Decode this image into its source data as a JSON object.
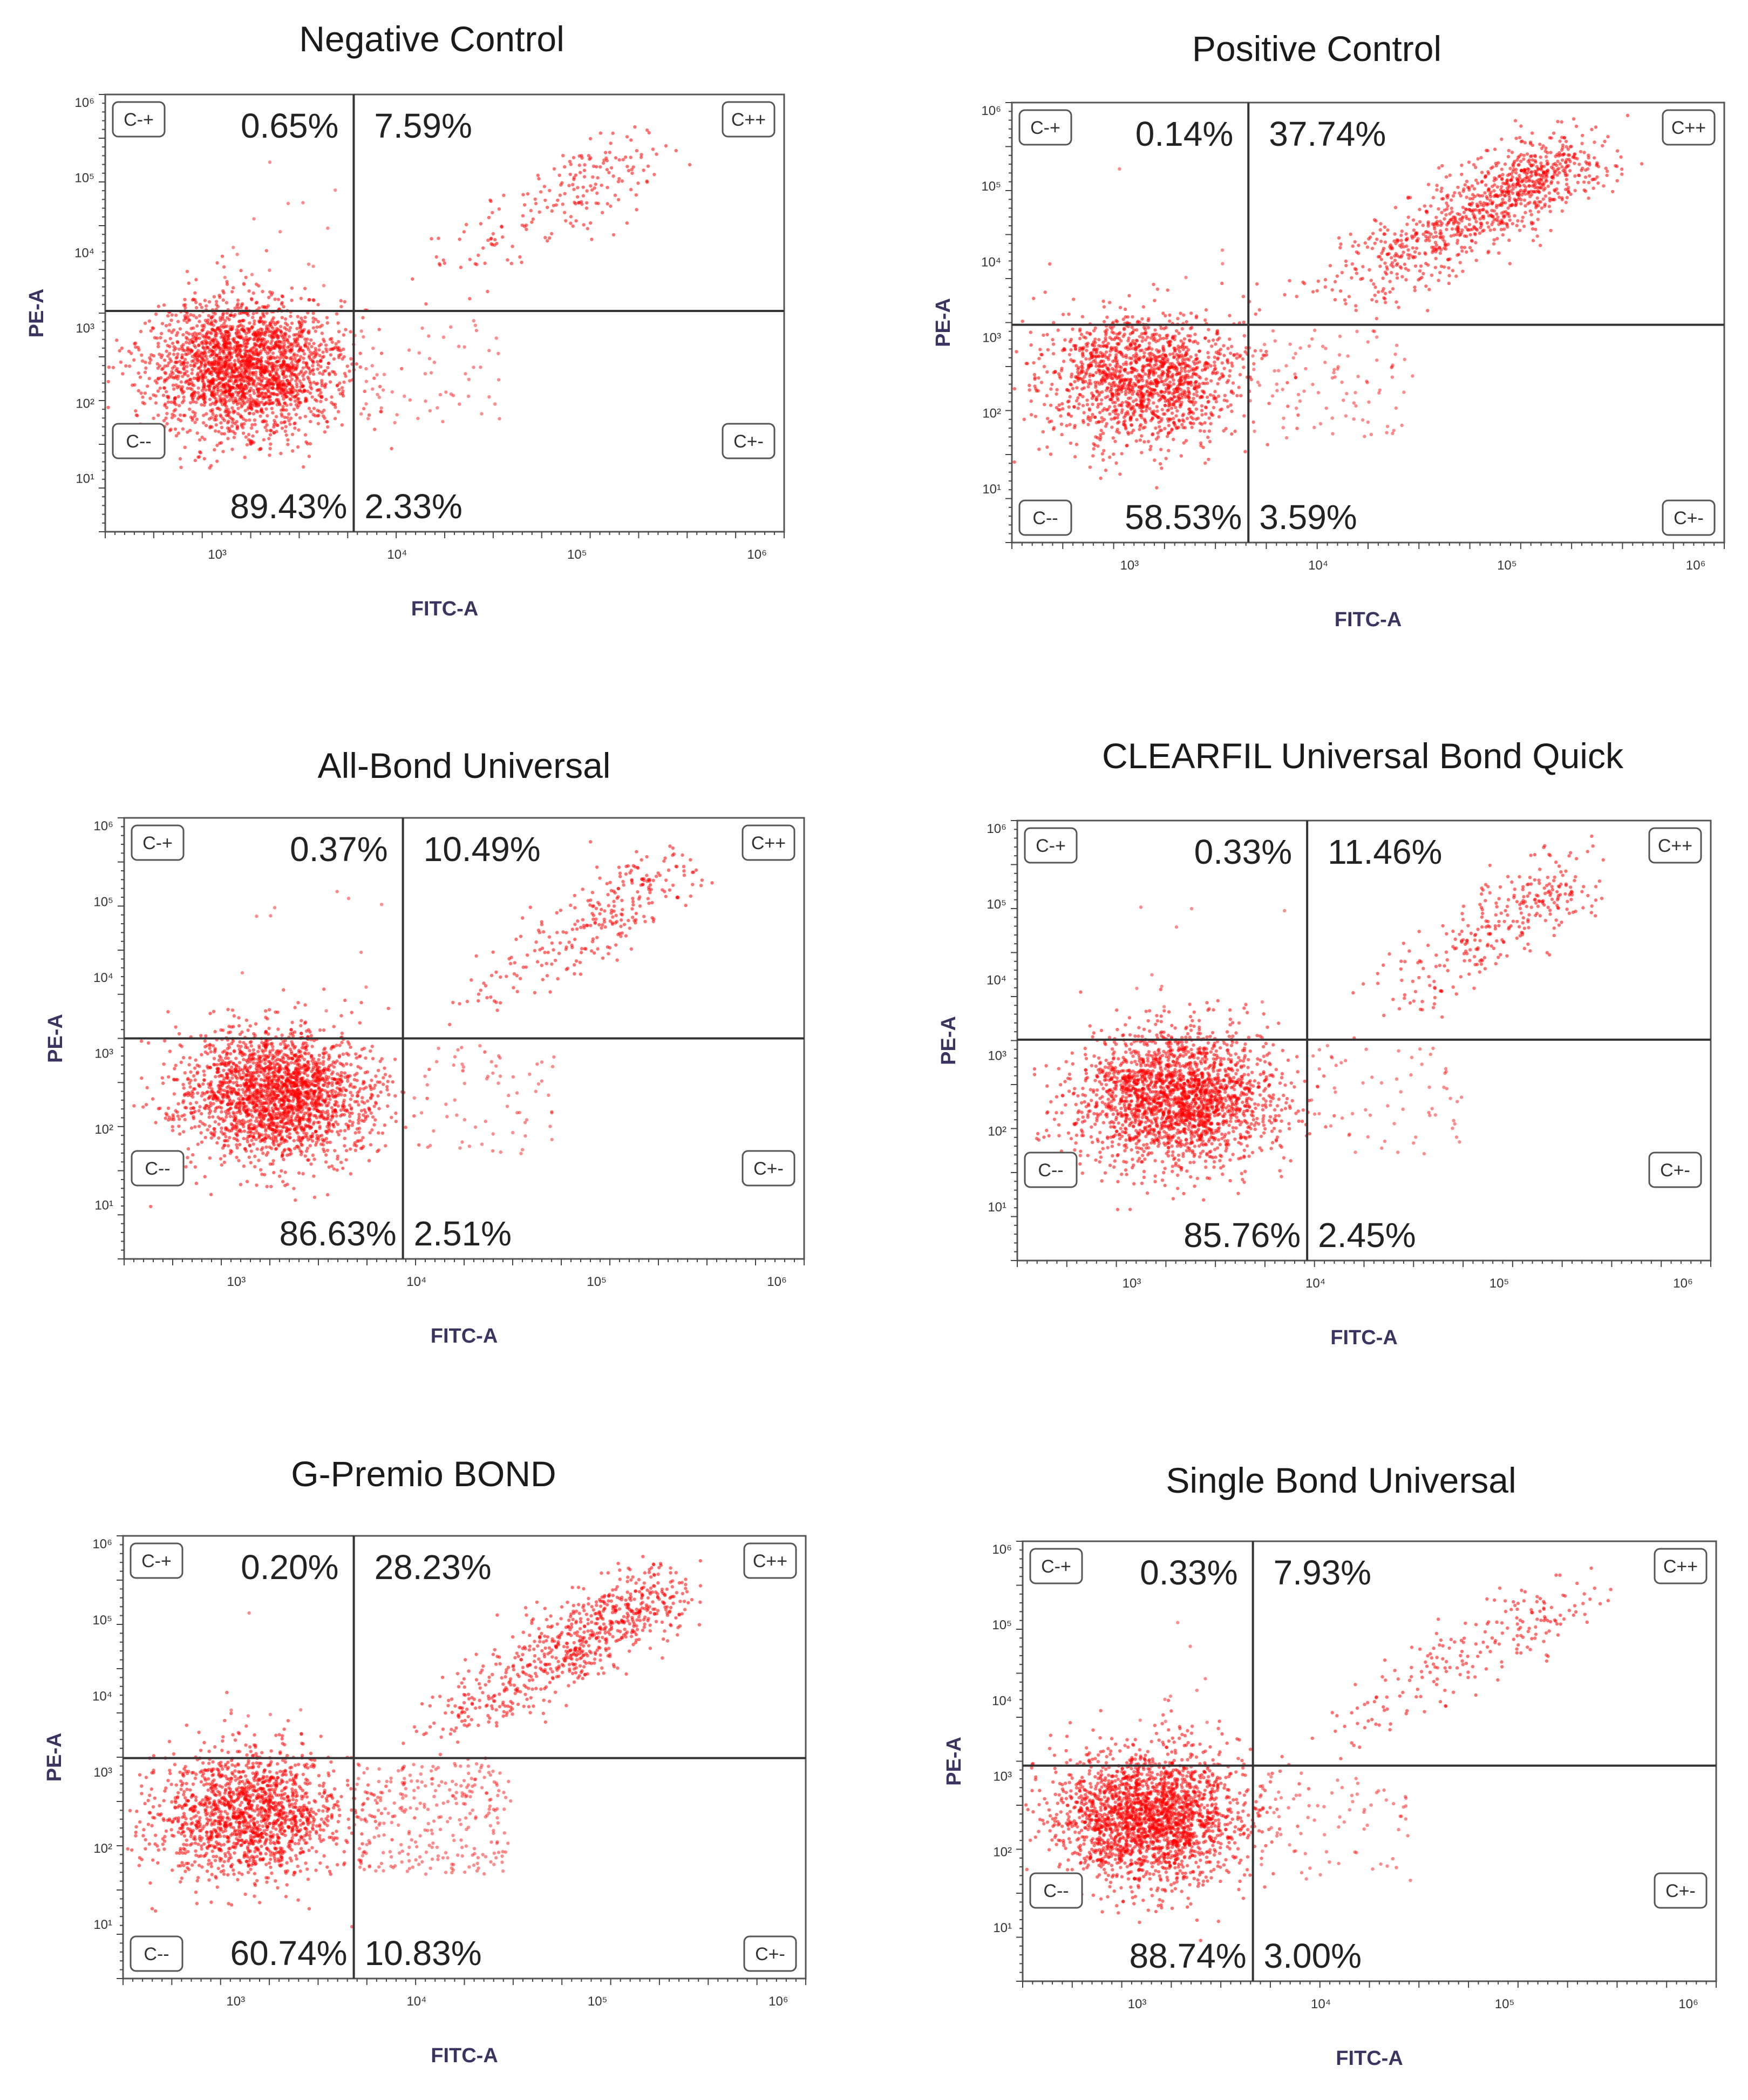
{
  "chart_data": [
    {
      "type": "scatter",
      "title": "Negative Control",
      "xlabel": "FITC-A",
      "ylabel": "PE-A",
      "x_scale": "log",
      "y_scale": "log",
      "x_ticks": [
        "10³",
        "10⁴",
        "10⁵",
        "10⁶"
      ],
      "y_ticks": [
        "10⁶",
        "10⁵",
        "10⁴",
        "10³",
        "10²",
        "10¹"
      ],
      "quadrant_labels": {
        "top_left": "C-+",
        "top_right": "C++",
        "bottom_left": "C--",
        "bottom_right": "C+-"
      },
      "quadrants": {
        "top_left": "0.65%",
        "top_right": "7.59%",
        "bottom_left": "89.43%",
        "bottom_right": "2.33%"
      },
      "point_color": "#ff0000"
    },
    {
      "type": "scatter",
      "title": "Positive Control",
      "xlabel": "FITC-A",
      "ylabel": "PE-A",
      "x_scale": "log",
      "y_scale": "log",
      "x_ticks": [
        "10³",
        "10⁴",
        "10⁵",
        "10⁶"
      ],
      "y_ticks": [
        "10⁶",
        "10⁵",
        "10⁴",
        "10³",
        "10²",
        "10¹"
      ],
      "quadrant_labels": {
        "top_left": "C-+",
        "top_right": "C++",
        "bottom_left": "C--",
        "bottom_right": "C+-"
      },
      "quadrants": {
        "top_left": "0.14%",
        "top_right": "37.74%",
        "bottom_left": "58.53%",
        "bottom_right": "3.59%"
      },
      "point_color": "#ff0000"
    },
    {
      "type": "scatter",
      "title": "All-Bond Universal",
      "xlabel": "FITC-A",
      "ylabel": "PE-A",
      "x_scale": "log",
      "y_scale": "log",
      "x_ticks": [
        "10³",
        "10⁴",
        "10⁵",
        "10⁶"
      ],
      "y_ticks": [
        "10⁶",
        "10⁵",
        "10⁴",
        "10³",
        "10²",
        "10¹"
      ],
      "quadrant_labels": {
        "top_left": "C-+",
        "top_right": "C++",
        "bottom_left": "C--",
        "bottom_right": "C+-"
      },
      "quadrants": {
        "top_left": "0.37%",
        "top_right": "10.49%",
        "bottom_left": "86.63%",
        "bottom_right": "2.51%"
      },
      "point_color": "#ff0000"
    },
    {
      "type": "scatter",
      "title": "CLEARFIL  Universal Bond Quick",
      "xlabel": "FITC-A",
      "ylabel": "PE-A",
      "x_scale": "log",
      "y_scale": "log",
      "x_ticks": [
        "10³",
        "10⁴",
        "10⁵",
        "10⁶"
      ],
      "y_ticks": [
        "10⁶",
        "10⁵",
        "10⁴",
        "10³",
        "10²",
        "10¹"
      ],
      "quadrant_labels": {
        "top_left": "C-+",
        "top_right": "C++",
        "bottom_left": "C--",
        "bottom_right": "C+-"
      },
      "quadrants": {
        "top_left": "0.33%",
        "top_right": "11.46%",
        "bottom_left": "85.76%",
        "bottom_right": "2.45%"
      },
      "point_color": "#ff0000"
    },
    {
      "type": "scatter",
      "title": "G-Premio BOND",
      "xlabel": "FITC-A",
      "ylabel": "PE-A",
      "x_scale": "log",
      "y_scale": "log",
      "x_ticks": [
        "10³",
        "10⁴",
        "10⁵",
        "10⁶"
      ],
      "y_ticks": [
        "10⁶",
        "10⁵",
        "10⁴",
        "10³",
        "10²",
        "10¹"
      ],
      "quadrant_labels": {
        "top_left": "C-+",
        "top_right": "C++",
        "bottom_left": "C--",
        "bottom_right": "C+-"
      },
      "quadrants": {
        "top_left": "0.20%",
        "top_right": "28.23%",
        "bottom_left": "60.74%",
        "bottom_right": "10.83%"
      },
      "point_color": "#ff0000"
    },
    {
      "type": "scatter",
      "title": "Single Bond Universal",
      "xlabel": "FITC-A",
      "ylabel": "PE-A",
      "x_scale": "log",
      "y_scale": "log",
      "x_ticks": [
        "10³",
        "10⁴",
        "10⁵",
        "10⁶"
      ],
      "y_ticks": [
        "10⁶",
        "10⁵",
        "10⁴",
        "10³",
        "10²",
        "10¹"
      ],
      "quadrant_labels": {
        "top_left": "C-+",
        "top_right": "C++",
        "bottom_left": "C--",
        "bottom_right": "C+-"
      },
      "quadrants": {
        "top_left": "0.33%",
        "top_right": "7.93%",
        "bottom_left": "88.74%",
        "bottom_right": "3.00%"
      },
      "point_color": "#ff0000"
    }
  ]
}
